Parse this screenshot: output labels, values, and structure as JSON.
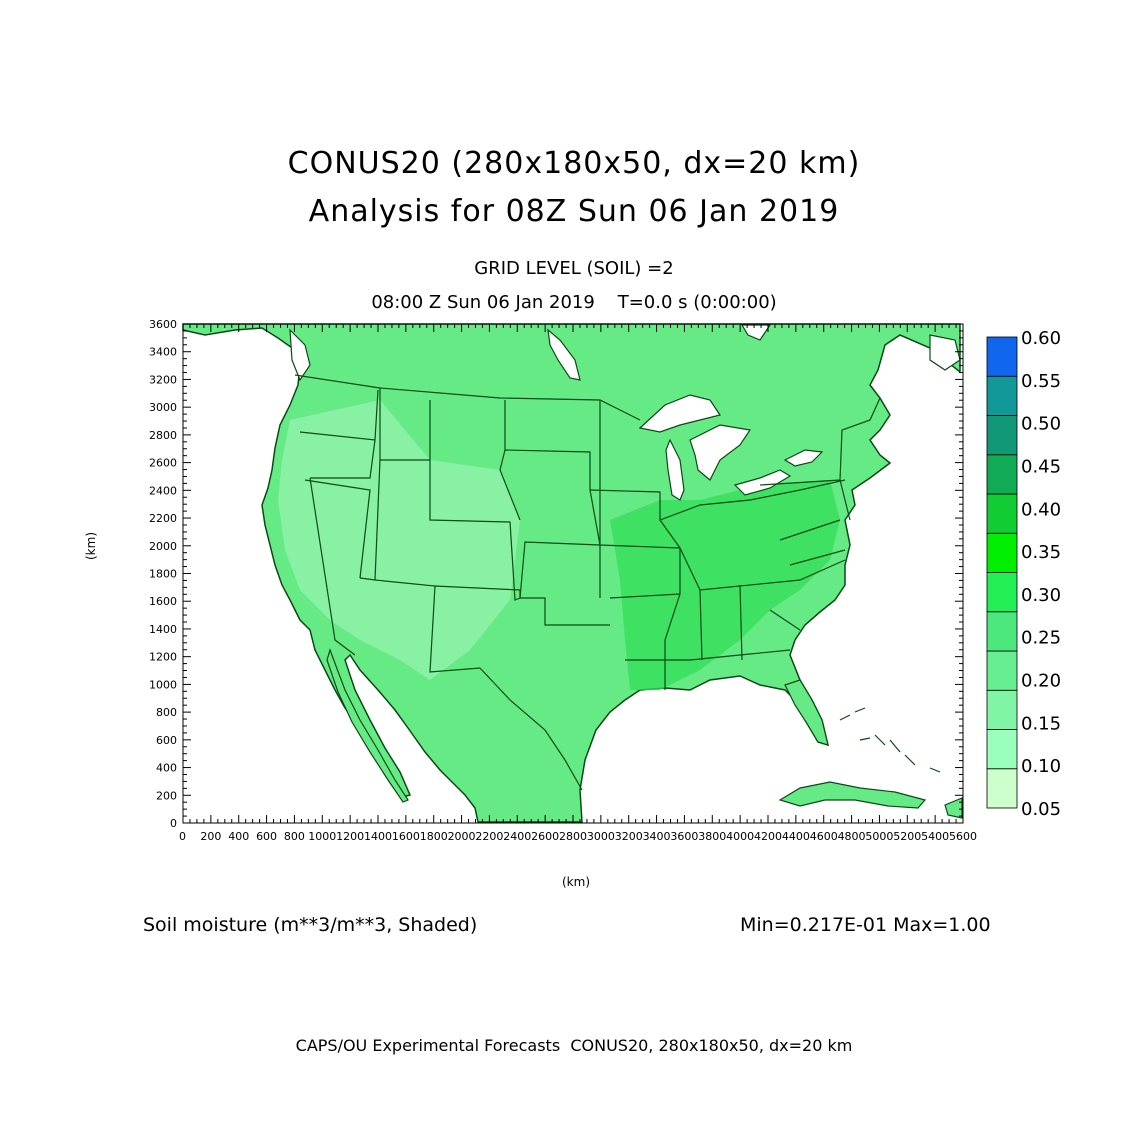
{
  "header": {
    "title": "CONUS20 (280x180x50, dx=20 km)",
    "analysis": "Analysis for 08Z Sun 06 Jan 2019",
    "grid_level": "GRID LEVEL (SOIL) =2",
    "valid_time": "08:00 Z Sun 06 Jan 2019    T=0.0 s (0:00:00)"
  },
  "axes": {
    "xlabel": "(km)",
    "ylabel": "(km)",
    "x_ticks": [
      "0",
      "200",
      "400",
      "600",
      "800",
      "1000",
      "1200",
      "1400",
      "1600",
      "1800",
      "2000",
      "2200",
      "2400",
      "2600",
      "2800",
      "3000",
      "3200",
      "3400",
      "3600",
      "3800",
      "4000",
      "4200",
      "4400",
      "4600",
      "4800",
      "5000",
      "5200",
      "5400",
      "5600"
    ],
    "y_ticks": [
      "0",
      "200",
      "400",
      "600",
      "800",
      "1000",
      "1200",
      "1400",
      "1600",
      "1800",
      "2000",
      "2200",
      "2400",
      "2600",
      "2800",
      "3000",
      "3200",
      "3400",
      "3600"
    ],
    "xlim": [
      0,
      5600
    ],
    "ylim": [
      0,
      3600
    ]
  },
  "colorbar": {
    "labels": [
      "0.05",
      "0.10",
      "0.15",
      "0.20",
      "0.25",
      "0.30",
      "0.35",
      "0.40",
      "0.45",
      "0.50",
      "0.55",
      "0.60"
    ],
    "colors": [
      "#ccffcc",
      "#99ffbb",
      "#80f5a5",
      "#66ee90",
      "#4de87d",
      "#22ee55",
      "#00ee00",
      "#11cc33",
      "#11aa55",
      "#119977",
      "#119999",
      "#1166ee"
    ]
  },
  "field": {
    "variable": "Soil moisture (m**3/m**3, Shaded)",
    "minmax": "Min=0.217E-01 Max=1.00"
  },
  "footer": "CAPS/OU Experimental Forecasts  CONUS20, 280x180x50, dx=20 km",
  "map_colors": {
    "land_dry": "#8ff2a8",
    "land_mid": "#66ea86",
    "land_wet": "#33dd55",
    "water": "#ffffff",
    "boundary": "#0a4a14"
  }
}
